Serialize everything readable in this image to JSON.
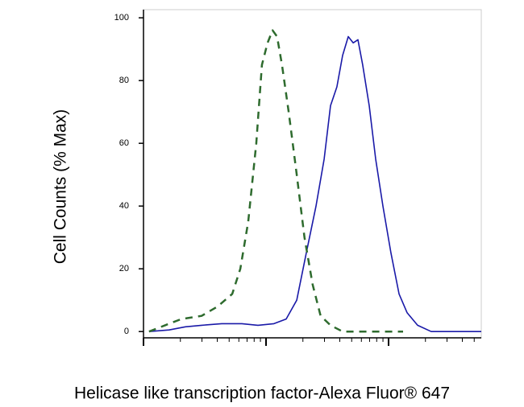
{
  "chart_data": {
    "type": "line",
    "xlabel": "Helicase like transcription factor-Alexa Fluor® 647",
    "ylabel": "Cell Counts (% Max)",
    "xscale": "log",
    "xlim": [
      1,
      571
    ],
    "xticks": [
      1,
      10,
      100
    ],
    "ylim": [
      -2,
      102.6
    ],
    "yticks": [
      0,
      20,
      40,
      60,
      80,
      100
    ],
    "series": [
      {
        "color": "#1a1aa8",
        "dash": false,
        "x": [
          1.11,
          1.62,
          2.2,
          2.98,
          4.35,
          6.35,
          8.6,
          11.6,
          14.6,
          17.8,
          21.3,
          25.6,
          29.8,
          33.6,
          37.9,
          42.2,
          46.9,
          51.4,
          56.2,
          61.5,
          69.5,
          78.5,
          89.9,
          104.7,
          121.8,
          141.7,
          172.5,
          223,
          571
        ],
        "values": [
          0,
          0.5,
          1.5,
          2,
          2.5,
          2.5,
          2,
          2.5,
          4,
          10,
          25,
          40,
          55,
          72,
          78,
          88,
          94,
          92,
          93,
          85,
          72,
          55,
          40,
          25,
          12,
          6,
          2,
          0,
          0
        ]
      },
      {
        "color": "#2e6b2e",
        "dash": true,
        "x": [
          1.11,
          1.5,
          2.04,
          2.98,
          4.03,
          5.3,
          6.17,
          7.16,
          8.33,
          9.26,
          10.3,
          11.3,
          12.3,
          13.5,
          15.3,
          17.8,
          20.6,
          24.0,
          27.9,
          33.6,
          42.2,
          131.4
        ],
        "values": [
          0,
          2,
          4,
          5,
          8,
          12,
          20,
          35,
          60,
          85,
          92,
          96,
          94,
          85,
          70,
          50,
          30,
          15,
          5,
          2,
          0,
          0
        ]
      }
    ]
  }
}
